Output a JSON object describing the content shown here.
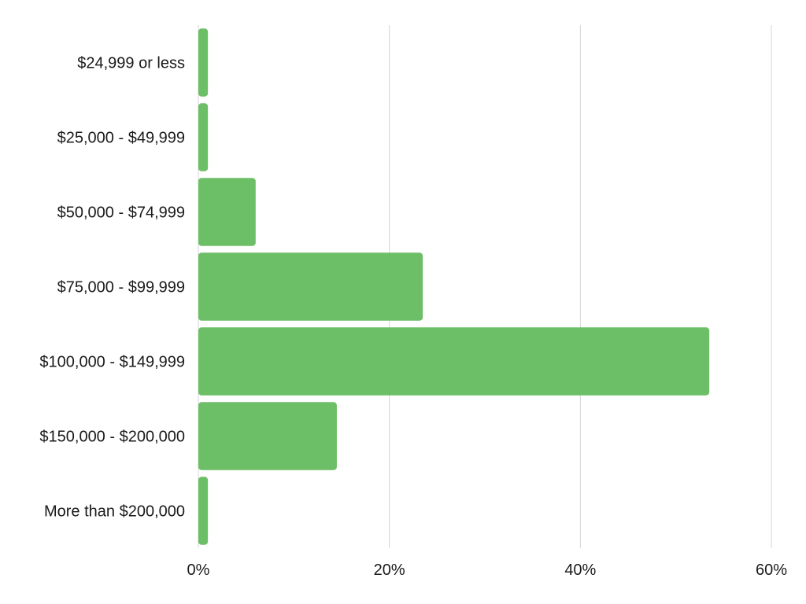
{
  "chart_data": {
    "type": "bar",
    "orientation": "horizontal",
    "categories": [
      "$24,999 or less",
      "$25,000 - $49,999",
      "$50,000 - $74,999",
      "$75,000 - $99,999",
      "$100,000 - $149,999",
      "$150,000 - $200,000",
      "More than $200,000"
    ],
    "values": [
      1,
      1,
      6,
      23.5,
      53.5,
      14.5,
      1
    ],
    "unit": "%",
    "xlim": [
      0,
      60
    ],
    "xticks": [
      0,
      20,
      40,
      60
    ],
    "xtick_labels": [
      "0%",
      "20%",
      "40%",
      "60%"
    ],
    "grid": "vertical",
    "legend": "none",
    "title": "",
    "xlabel": "",
    "ylabel": "",
    "bar_color": "#6dbf67",
    "grid_color": "#d4d4d4"
  }
}
